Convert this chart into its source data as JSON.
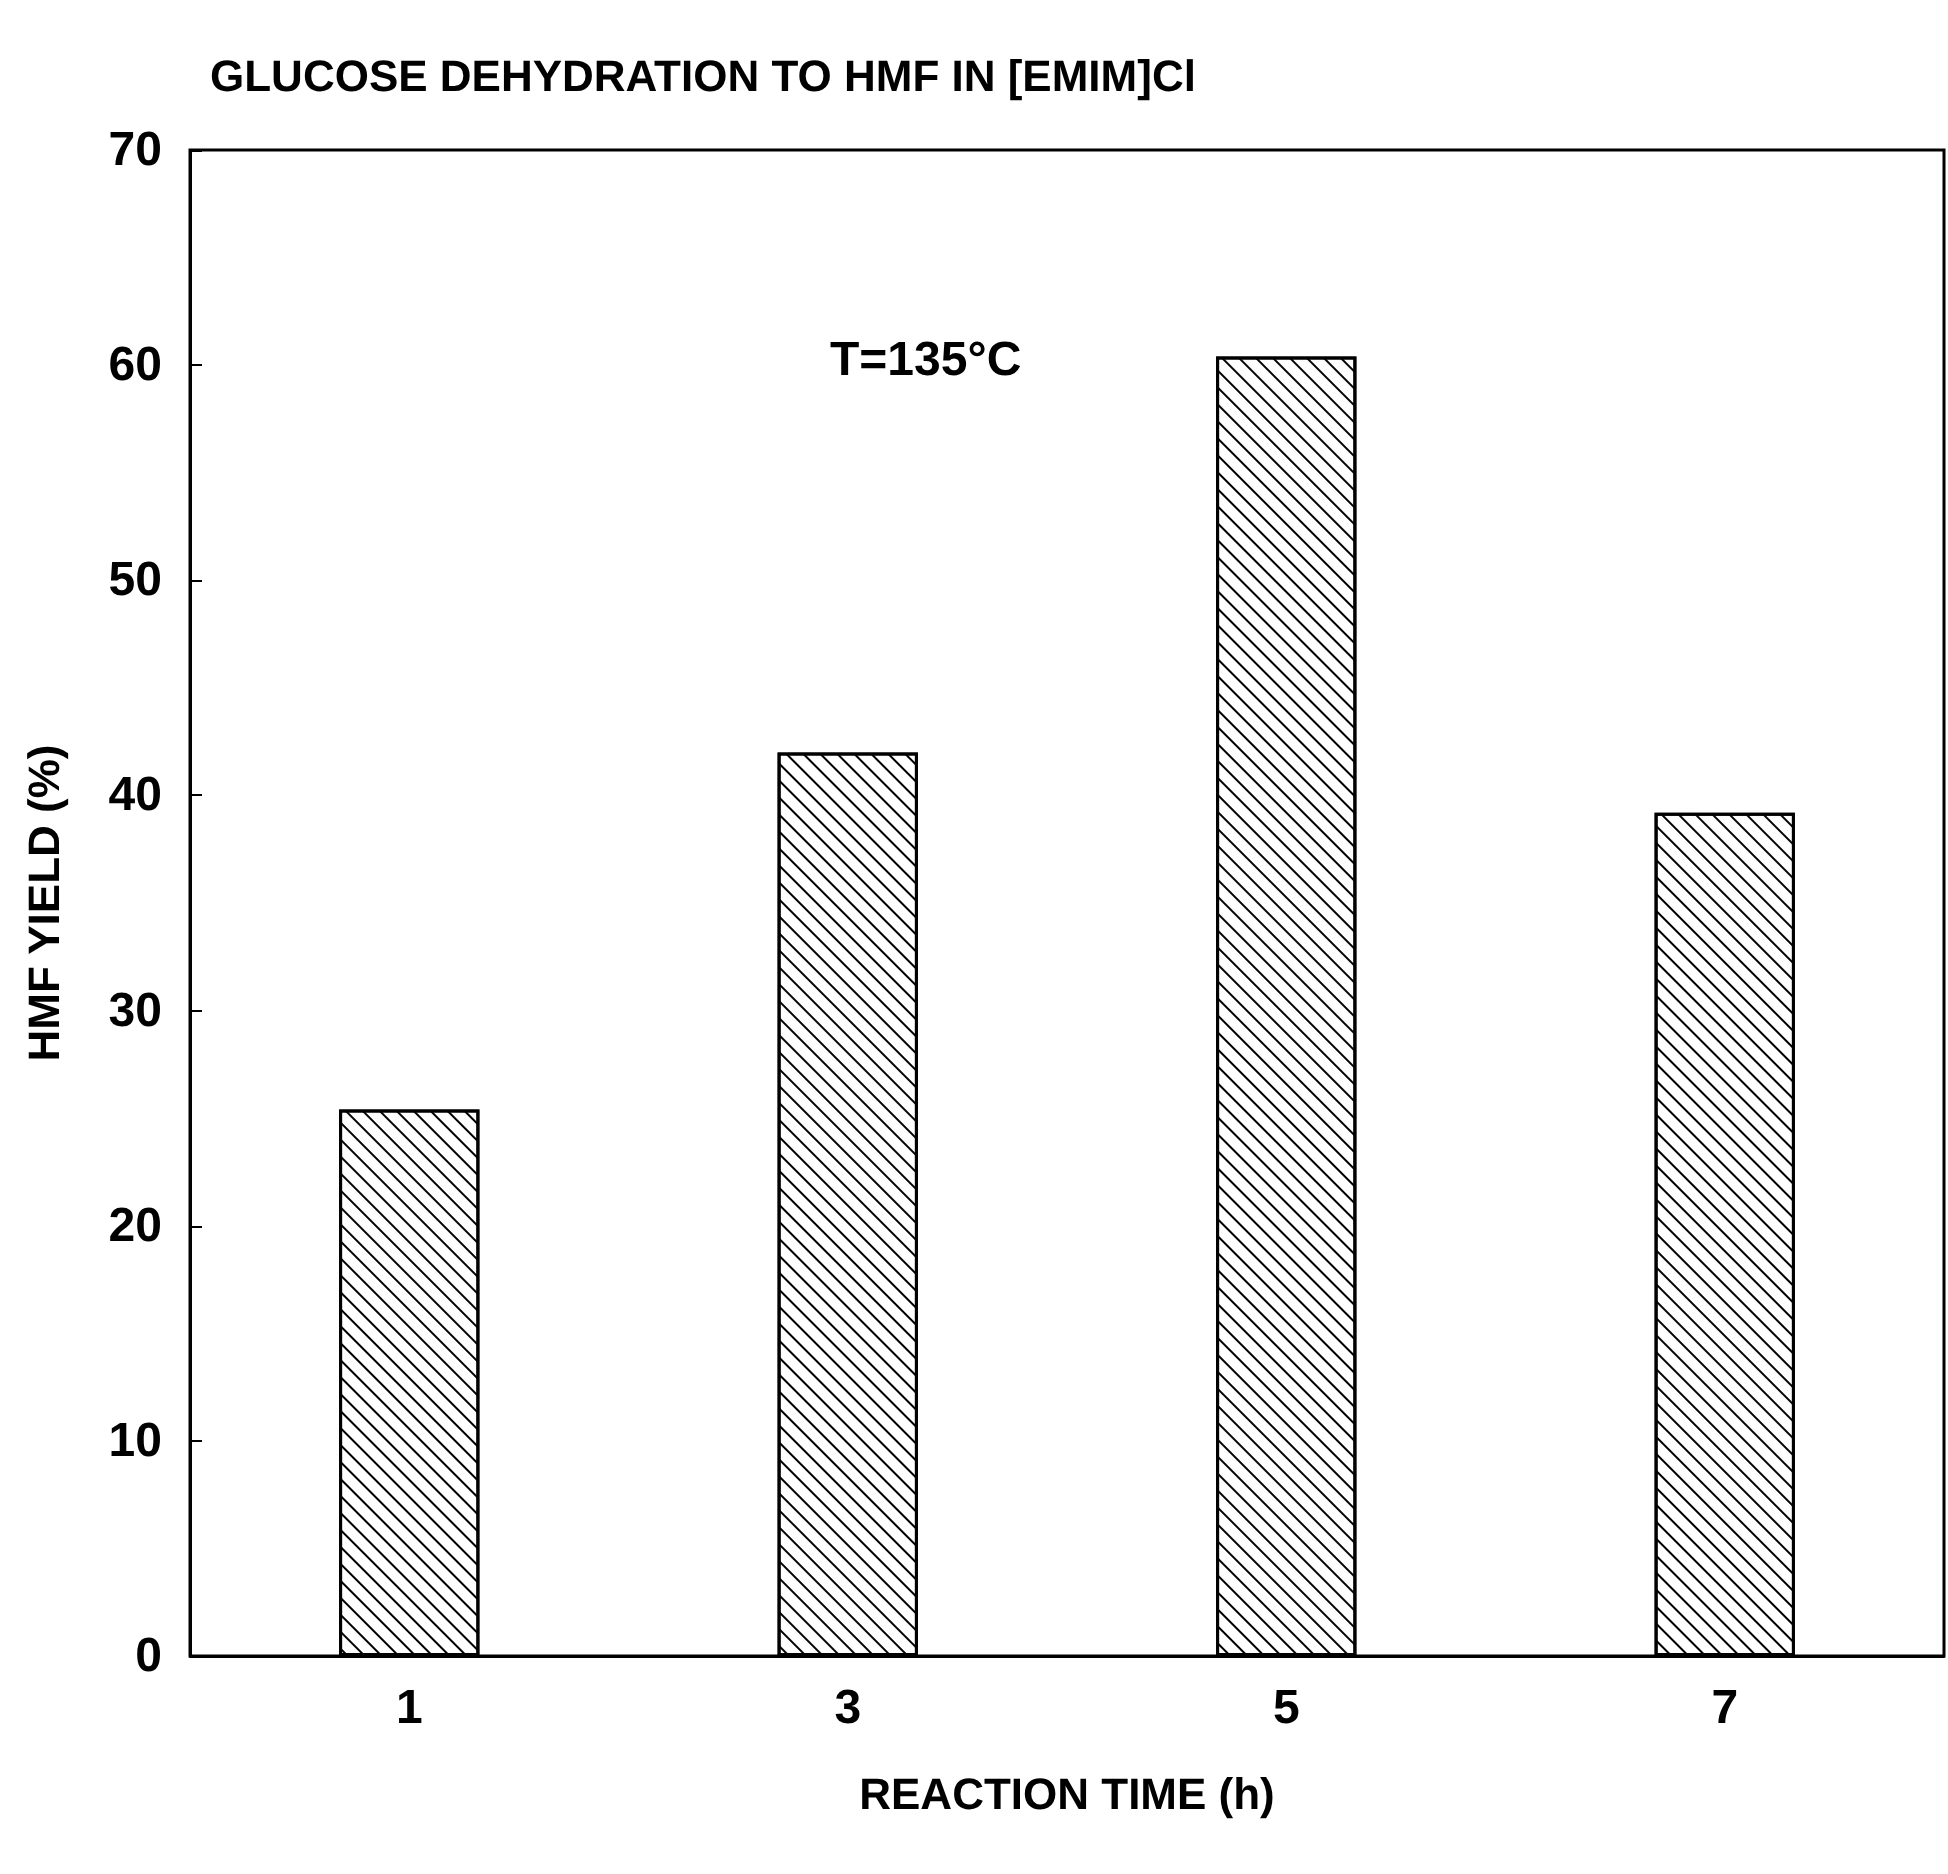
{
  "chart_data": {
    "type": "bar",
    "title": "GLUCOSE DEHYDRATION TO HMF IN [EMIM]Cl",
    "xlabel": "REACTION TIME (h)",
    "ylabel": "HMF YIELD (%)",
    "categories": [
      "1",
      "3",
      "5",
      "7"
    ],
    "values": [
      25.4,
      42,
      60.4,
      39.2
    ],
    "color": "#ffffff",
    "ylim": [
      0,
      70
    ],
    "yticks": [
      0,
      10,
      20,
      30,
      40,
      50,
      60,
      70
    ],
    "grid": false,
    "annotations": [
      "T=135°C"
    ]
  }
}
